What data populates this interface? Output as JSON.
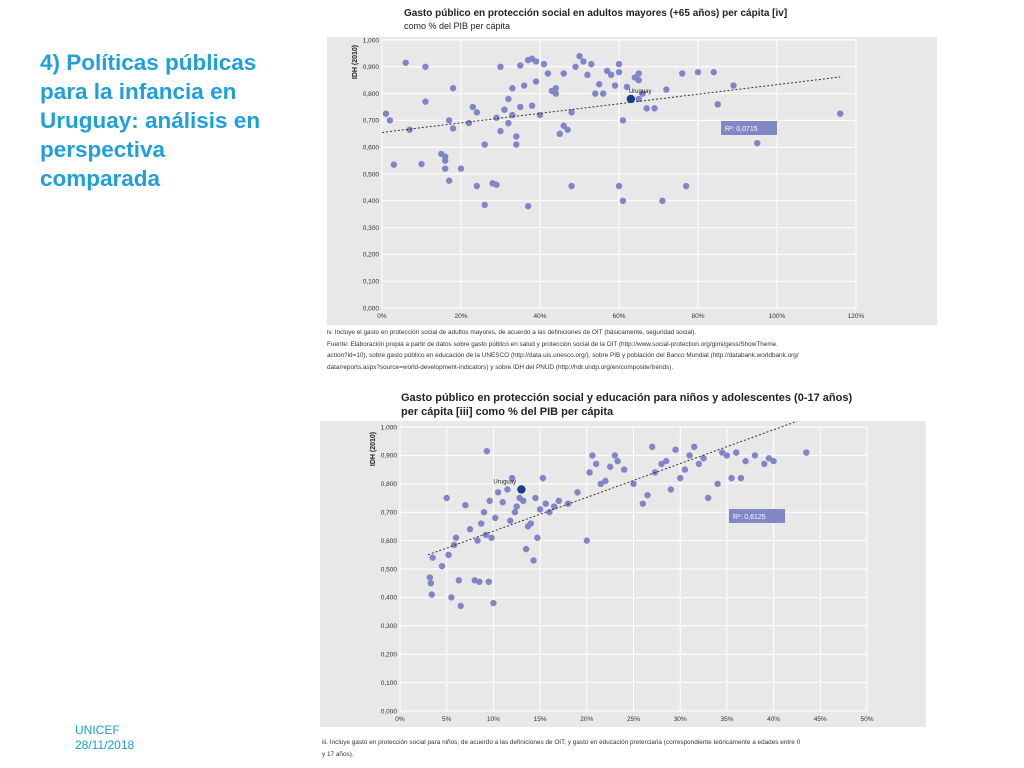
{
  "slide": {
    "title": "4) Políticas públicas para la infancia en Uruguay: análisis en perspectiva comparada",
    "footer": {
      "org": "UNICEF",
      "date": "28/11/2018"
    }
  },
  "figure1": {
    "title_line1": "Gasto público en protección social en adultos mayores (+65 años) per cápita [iv]",
    "title_line2": "como % del PIB per cápita",
    "note_lines": [
      "iv.  Incluye el gasto en protección social de adultos mayores, de acuerdo a las definiciones de OIT (básicamente, seguridad social).",
      "Fuente: Elaboración propia a partir de datos sobre gasto público en salud y protección social de la OIT (http://www.social-protection.org/gimi/gess/ShowTheme.",
      "action?id=10), sobre gasto público en educación de la UNESCO (http://data.uis.unesco.org/), sobre PIB y población del Banco Mundial (http://databank.worldbank.org/",
      "data/reports.aspx?source=world-development-indicators) y sobre IDH del PNUD (http://hdr.undp.org/en/composite/trends)."
    ]
  },
  "figure2": {
    "title_line1": "Gasto público en protección social y educación para niños y adolescentes (0-17 años)",
    "title_line2": "per cápita [iii] como % del PIB per cápita",
    "note_lines": [
      "iii.  Incluye gasto en protección social para niños, de acuerdo a las definiciones de OIT, y gasto en educación preterciaria (correspondiente teóricamente a edades entre 0",
      "y 17 años)."
    ]
  },
  "colors": {
    "title": "#1fa0dc",
    "footer": "#1b9bd6",
    "plot_bg": "#e8e8e8",
    "point": "#7f86c8",
    "highlight": "#1f3a8c",
    "r2_box": "#8087c4",
    "trend": "#333333"
  },
  "chart_data": [
    {
      "type": "scatter",
      "title": "Gasto público en protección social en adultos mayores (+65 años) per cápita [iv]",
      "subtitle": "como % del PIB per cápita",
      "xlabel": "",
      "ylabel": "IDH (2010)",
      "xlim": [
        0,
        120
      ],
      "ylim": [
        0,
        1
      ],
      "x_ticks": [
        "0%",
        "20%",
        "40%",
        "60%",
        "80%",
        "100%",
        "120%"
      ],
      "y_ticks": [
        "0,000",
        "0,100",
        "0,200",
        "0,300",
        "0,400",
        "0,500",
        "0,600",
        "0,700",
        "0,800",
        "0,900",
        "1,000"
      ],
      "grid": true,
      "trendline": {
        "x": [
          0,
          116
        ],
        "y": [
          0.655,
          0.862
        ]
      },
      "r2_label": "R²: 0,0715",
      "highlight": {
        "label": "Uruguay",
        "x": 63,
        "y": 0.78
      },
      "points": [
        [
          1,
          0.725
        ],
        [
          2,
          0.7
        ],
        [
          3,
          0.535
        ],
        [
          6,
          0.915
        ],
        [
          7,
          0.665
        ],
        [
          10,
          0.537
        ],
        [
          11,
          0.77
        ],
        [
          11,
          0.9
        ],
        [
          15,
          0.575
        ],
        [
          16,
          0.52
        ],
        [
          16,
          0.55
        ],
        [
          16,
          0.565
        ],
        [
          17,
          0.475
        ],
        [
          17,
          0.7
        ],
        [
          18,
          0.82
        ],
        [
          18,
          0.67
        ],
        [
          20,
          0.52
        ],
        [
          22,
          0.69
        ],
        [
          23,
          0.75
        ],
        [
          24,
          0.455
        ],
        [
          24,
          0.73
        ],
        [
          26,
          0.385
        ],
        [
          26,
          0.61
        ],
        [
          28,
          0.465
        ],
        [
          29,
          0.71
        ],
        [
          29,
          0.46
        ],
        [
          30,
          0.9
        ],
        [
          30,
          0.66
        ],
        [
          31,
          0.74
        ],
        [
          32,
          0.69
        ],
        [
          32,
          0.78
        ],
        [
          33,
          0.82
        ],
        [
          33,
          0.72
        ],
        [
          34,
          0.64
        ],
        [
          34,
          0.61
        ],
        [
          35,
          0.905
        ],
        [
          35,
          0.75
        ],
        [
          36,
          0.83
        ],
        [
          37,
          0.925
        ],
        [
          37,
          0.38
        ],
        [
          38,
          0.755
        ],
        [
          38,
          0.93
        ],
        [
          39,
          0.92
        ],
        [
          39,
          0.845
        ],
        [
          40,
          0.72
        ],
        [
          41,
          0.91
        ],
        [
          42,
          0.875
        ],
        [
          43,
          0.81
        ],
        [
          44,
          0.82
        ],
        [
          44,
          0.8
        ],
        [
          45,
          0.65
        ],
        [
          46,
          0.68
        ],
        [
          46,
          0.875
        ],
        [
          47,
          0.665
        ],
        [
          48,
          0.73
        ],
        [
          48,
          0.455
        ],
        [
          49,
          0.9
        ],
        [
          50,
          0.94
        ],
        [
          51,
          0.92
        ],
        [
          52,
          0.87
        ],
        [
          53,
          0.91
        ],
        [
          54,
          0.8
        ],
        [
          55,
          0.835
        ],
        [
          56,
          0.8
        ],
        [
          57,
          0.885
        ],
        [
          58,
          0.87
        ],
        [
          59,
          0.83
        ],
        [
          60,
          0.91
        ],
        [
          60,
          0.88
        ],
        [
          60,
          0.455
        ],
        [
          61,
          0.7
        ],
        [
          61,
          0.4
        ],
        [
          62,
          0.825
        ],
        [
          64,
          0.86
        ],
        [
          65,
          0.875
        ],
        [
          65,
          0.85
        ],
        [
          65,
          0.78
        ],
        [
          66,
          0.8
        ],
        [
          67,
          0.745
        ],
        [
          69,
          0.745
        ],
        [
          71,
          0.4
        ],
        [
          72,
          0.815
        ],
        [
          76,
          0.875
        ],
        [
          77,
          0.455
        ],
        [
          80,
          0.88
        ],
        [
          84,
          0.88
        ],
        [
          85,
          0.76
        ],
        [
          89,
          0.83
        ],
        [
          95,
          0.615
        ],
        [
          116,
          0.725
        ]
      ]
    },
    {
      "type": "scatter",
      "title": "Gasto público en protección social y educación para niños y adolescentes (0-17 años)",
      "subtitle": "per cápita [iii] como % del PIB per cápita",
      "xlabel": "",
      "ylabel": "IDH (2010)",
      "xlim": [
        0,
        50
      ],
      "ylim": [
        0,
        1
      ],
      "x_ticks": [
        "0%",
        "5%",
        "10%",
        "15%",
        "20%",
        "25%",
        "30%",
        "35%",
        "40%",
        "45%",
        "50%"
      ],
      "y_ticks": [
        "0,000",
        "0,100",
        "0,200",
        "0,300",
        "0,400",
        "0,500",
        "0,600",
        "0,700",
        "0,800",
        "0,900",
        "1,000"
      ],
      "grid": true,
      "trendline": {
        "x": [
          3,
          42.5
        ],
        "y": [
          0.55,
          1.02
        ]
      },
      "r2_label": "R²: 0,6125",
      "highlight": {
        "label": "Uruguay",
        "x": 13,
        "y": 0.78
      },
      "points": [
        [
          3.2,
          0.47
        ],
        [
          3.3,
          0.45
        ],
        [
          3.4,
          0.41
        ],
        [
          3.5,
          0.54
        ],
        [
          4.5,
          0.51
        ],
        [
          5.0,
          0.75
        ],
        [
          5.2,
          0.55
        ],
        [
          5.5,
          0.4
        ],
        [
          5.8,
          0.585
        ],
        [
          6.0,
          0.61
        ],
        [
          6.3,
          0.46
        ],
        [
          6.5,
          0.37
        ],
        [
          7.0,
          0.725
        ],
        [
          7.5,
          0.64
        ],
        [
          8.0,
          0.46
        ],
        [
          8.3,
          0.6
        ],
        [
          8.5,
          0.455
        ],
        [
          8.7,
          0.66
        ],
        [
          9.0,
          0.7
        ],
        [
          9.2,
          0.62
        ],
        [
          9.3,
          0.915
        ],
        [
          9.5,
          0.455
        ],
        [
          9.6,
          0.74
        ],
        [
          9.8,
          0.61
        ],
        [
          10.0,
          0.38
        ],
        [
          10.2,
          0.68
        ],
        [
          10.5,
          0.77
        ],
        [
          11.0,
          0.735
        ],
        [
          11.5,
          0.78
        ],
        [
          11.8,
          0.67
        ],
        [
          12.0,
          0.82
        ],
        [
          12.3,
          0.7
        ],
        [
          12.5,
          0.72
        ],
        [
          12.8,
          0.75
        ],
        [
          13.2,
          0.74
        ],
        [
          13.5,
          0.57
        ],
        [
          13.7,
          0.65
        ],
        [
          14.0,
          0.66
        ],
        [
          14.3,
          0.53
        ],
        [
          14.5,
          0.75
        ],
        [
          14.7,
          0.61
        ],
        [
          15.0,
          0.71
        ],
        [
          15.3,
          0.82
        ],
        [
          15.6,
          0.73
        ],
        [
          16.0,
          0.7
        ],
        [
          16.5,
          0.72
        ],
        [
          17.0,
          0.74
        ],
        [
          18.0,
          0.73
        ],
        [
          19.0,
          0.77
        ],
        [
          20.0,
          0.6
        ],
        [
          20.3,
          0.84
        ],
        [
          20.6,
          0.9
        ],
        [
          21.0,
          0.87
        ],
        [
          21.5,
          0.8
        ],
        [
          22.0,
          0.81
        ],
        [
          22.5,
          0.86
        ],
        [
          23.0,
          0.9
        ],
        [
          23.3,
          0.88
        ],
        [
          24.0,
          0.85
        ],
        [
          25.0,
          0.8
        ],
        [
          26.0,
          0.73
        ],
        [
          26.5,
          0.76
        ],
        [
          27.0,
          0.93
        ],
        [
          27.3,
          0.84
        ],
        [
          28.0,
          0.87
        ],
        [
          28.5,
          0.88
        ],
        [
          29.0,
          0.78
        ],
        [
          29.5,
          0.92
        ],
        [
          30.0,
          0.82
        ],
        [
          30.5,
          0.85
        ],
        [
          31.0,
          0.9
        ],
        [
          31.5,
          0.93
        ],
        [
          32.0,
          0.87
        ],
        [
          32.5,
          0.89
        ],
        [
          33.0,
          0.75
        ],
        [
          34.0,
          0.8
        ],
        [
          34.5,
          0.91
        ],
        [
          35.0,
          0.9
        ],
        [
          35.5,
          0.82
        ],
        [
          36.0,
          0.91
        ],
        [
          36.5,
          0.82
        ],
        [
          37.0,
          0.88
        ],
        [
          38.0,
          0.9
        ],
        [
          39.0,
          0.87
        ],
        [
          39.5,
          0.89
        ],
        [
          40.0,
          0.88
        ],
        [
          43.5,
          0.91
        ]
      ]
    }
  ]
}
